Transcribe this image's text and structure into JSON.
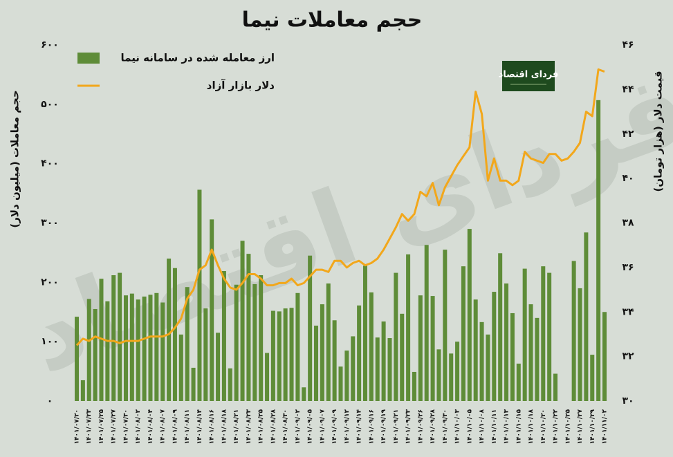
{
  "chart_data": {
    "type": "bar",
    "title": "حجم معاملات نیما",
    "y_label": "حجم معاملات (میلیون دلار)",
    "y2_label": "قیمت دلار (هزار تومان)",
    "logo": "فردای اقتصاد",
    "watermark": "فردای اقتصاد",
    "legend": "top-left",
    "grid": false,
    "categories": [
      "۱۴۰۱/۰۷/۲۰",
      null,
      "۱۴۰۱/۰۷/۲۳",
      null,
      "۱۴۰۱/۰۷/۲۵",
      null,
      "۱۴۰۱/۰۷/۲۷",
      null,
      "۱۴۰۱/۰۷/۳۰",
      null,
      "۱۴۰۱/۰۸/۰۲",
      null,
      "۱۴۰۱/۰۸/۰۴",
      null,
      "۱۴۰۱/۰۸/۰۷",
      null,
      "۱۴۰۱/۰۸/۰۹",
      null,
      "۱۴۰۱/۰۸/۱۱",
      null,
      "۱۴۰۱/۰۸/۱۴",
      null,
      "۱۴۰۱/۰۸/۱۶",
      null,
      "۱۴۰۱/۰۸/۱۸",
      null,
      "۱۴۰۱/۰۸/۲۱",
      null,
      "۱۴۰۱/۰۸/۲۳",
      null,
      "۱۴۰۱/۰۸/۲۵",
      null,
      "۱۴۰۱/۰۸/۲۸",
      null,
      "۱۴۰۱/۰۸/۳۰",
      null,
      "۱۴۰۱/۰۹/۰۲",
      null,
      "۱۴۰۱/۰۹/۰۵",
      null,
      "۱۴۰۱/۰۹/۰۷",
      null,
      "۱۴۰۱/۰۹/۰۹",
      null,
      "۱۴۰۱/۰۹/۱۲",
      null,
      "۱۴۰۱/۰۹/۱۴",
      null,
      "۱۴۰۱/۰۹/۱۶",
      null,
      "۱۴۰۱/۰۹/۱۹",
      null,
      "۱۴۰۱/۰۹/۲۱",
      null,
      "۱۴۰۱/۰۹/۲۳",
      null,
      "۱۴۰۱/۰۹/۲۶",
      null,
      "۱۴۰۱/۰۹/۲۸",
      null,
      "۱۴۰۱/۰۹/۳۰",
      null,
      "۱۴۰۱/۱۰/۰۳",
      null,
      "۱۴۰۱/۱۰/۰۵",
      null,
      "۱۴۰۱/۱۰/۰۸",
      null,
      "۱۴۰۱/۱۰/۱۱",
      null,
      "۱۴۰۱/۱۰/۱۳",
      null,
      "۱۴۰۱/۱۰/۱۵",
      null,
      "۱۴۰۱/۱۰/۱۸",
      null,
      "۱۴۰۱/۱۰/۲۰",
      null,
      "۱۴۰۱/۱۰/۲۲",
      null,
      "۱۴۰۱/۱۰/۲۵",
      null,
      "۱۴۰۱/۱۰/۲۷",
      null,
      "۱۴۰۱/۱۰/۲۹",
      null,
      "۱۴۰۱/۱۱/۰۲"
    ],
    "series": [
      {
        "name": "ارز معامله شده در سامانه نیما",
        "type": "bar",
        "color": "#5e8c38",
        "values": [
          142,
          35,
          172,
          155,
          206,
          168,
          212,
          216,
          178,
          181,
          171,
          176,
          179,
          182,
          166,
          240,
          224,
          112,
          192,
          56,
          356,
          156,
          306,
          115,
          219,
          55,
          196,
          270,
          248,
          197,
          212,
          81,
          152,
          151,
          156,
          157,
          182,
          23,
          245,
          127,
          163,
          198,
          136,
          58,
          85,
          109,
          161,
          228,
          183,
          107,
          134,
          106,
          216,
          147,
          247,
          49,
          178,
          263,
          177,
          87,
          255,
          80,
          100,
          227,
          290,
          171,
          133,
          112,
          184,
          249,
          198,
          148,
          63,
          223,
          163,
          140,
          227,
          216,
          46,
          null,
          null,
          236,
          190,
          284,
          78,
          507,
          150
        ]
      },
      {
        "name": "دلار بازار آزاد",
        "type": "line",
        "axis": "y2",
        "color": "#f2a71b",
        "values": [
          32.5,
          32.8,
          32.7,
          32.9,
          32.8,
          32.7,
          32.7,
          32.6,
          32.7,
          32.7,
          32.7,
          32.8,
          32.9,
          32.9,
          32.9,
          33.0,
          33.3,
          33.7,
          34.6,
          35.0,
          35.9,
          36.1,
          36.8,
          36.1,
          35.5,
          35.1,
          35.0,
          35.3,
          35.7,
          35.7,
          35.5,
          35.2,
          35.2,
          35.3,
          35.3,
          35.5,
          35.2,
          35.3,
          35.6,
          35.9,
          35.9,
          35.8,
          36.3,
          36.3,
          36.0,
          36.2,
          36.3,
          36.1,
          36.2,
          36.4,
          36.8,
          37.3,
          37.8,
          38.4,
          38.1,
          38.4,
          39.4,
          39.2,
          39.8,
          38.8,
          39.6,
          40.1,
          40.6,
          41.0,
          41.4,
          43.9,
          42.9,
          39.9,
          40.9,
          39.9,
          39.9,
          39.7,
          39.9,
          41.2,
          40.9,
          40.8,
          40.7,
          41.1,
          41.1,
          40.8,
          40.9,
          41.2,
          41.6,
          43.0,
          42.8,
          44.9,
          44.8
        ]
      }
    ],
    "ylim": [
      0,
      600
    ],
    "yticks": [
      {
        "value": 0,
        "label": "۰"
      },
      {
        "value": 100,
        "label": "۱۰۰"
      },
      {
        "value": 200,
        "label": "۲۰۰"
      },
      {
        "value": 300,
        "label": "۳۰۰"
      },
      {
        "value": 400,
        "label": "۴۰۰"
      },
      {
        "value": 500,
        "label": "۵۰۰"
      },
      {
        "value": 600,
        "label": "۶۰۰"
      }
    ],
    "y2lim": [
      30,
      46
    ],
    "y2ticks": [
      {
        "value": 30,
        "label": "۳۰"
      },
      {
        "value": 32,
        "label": "۳۲"
      },
      {
        "value": 34,
        "label": "۳۴"
      },
      {
        "value": 36,
        "label": "۳۶"
      },
      {
        "value": 38,
        "label": "۳۸"
      },
      {
        "value": 40,
        "label": "۴۰"
      },
      {
        "value": 42,
        "label": "۴۲"
      },
      {
        "value": 44,
        "label": "۴۴"
      },
      {
        "value": 46,
        "label": "۴۶"
      }
    ]
  }
}
